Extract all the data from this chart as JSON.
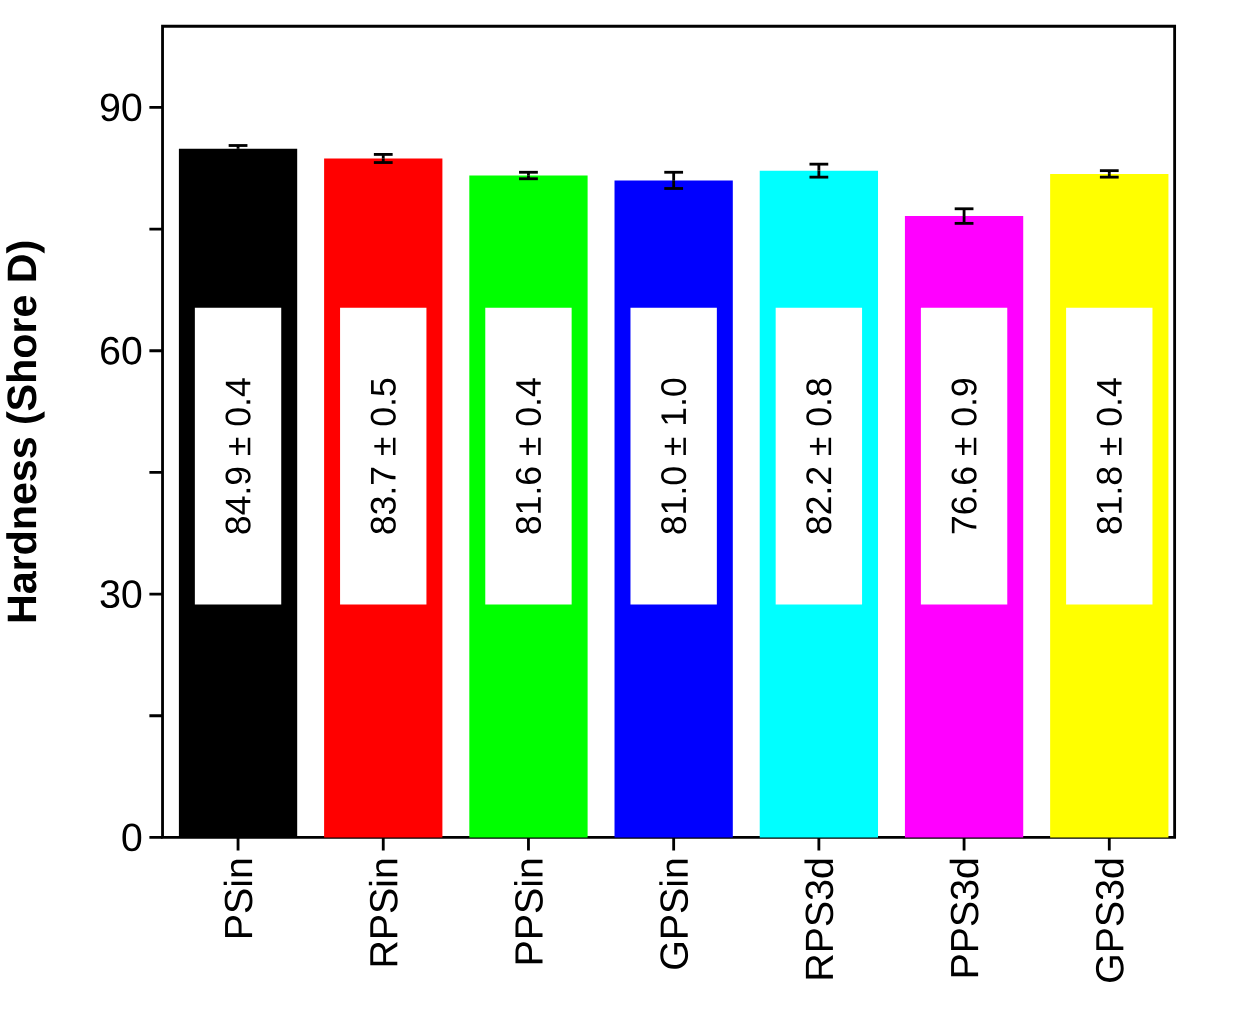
{
  "chart_data": {
    "type": "bar",
    "ylabel": "Hardness (Shore D)",
    "categories": [
      "PSin",
      "RPSin",
      "PPSin",
      "GPSin",
      "RPS3d",
      "PPS3d",
      "GPS3d"
    ],
    "values": [
      84.9,
      83.7,
      81.6,
      81.0,
      82.2,
      76.6,
      81.8
    ],
    "errors": [
      0.4,
      0.5,
      0.4,
      1.0,
      0.8,
      0.9,
      0.4
    ],
    "colors": [
      "#000000",
      "#ff0000",
      "#00ff00",
      "#0000ff",
      "#00ffff",
      "#ff00ff",
      "#ffff00"
    ],
    "value_labels": [
      "84.9 ± 0.4",
      "83.7 ± 0.5",
      "81.6 ± 0.4",
      "81.0 ± 1.0",
      "82.2 ± 0.8",
      "76.6 ± 0.9",
      "81.8 ± 0.4"
    ],
    "ylim": [
      0,
      100
    ],
    "yticks": [
      0,
      {
        "value": 15,
        "label": null
      },
      30,
      {
        "value": 45,
        "label": null
      },
      60,
      {
        "value": 75,
        "label": null
      },
      90
    ],
    "grid": false
  }
}
